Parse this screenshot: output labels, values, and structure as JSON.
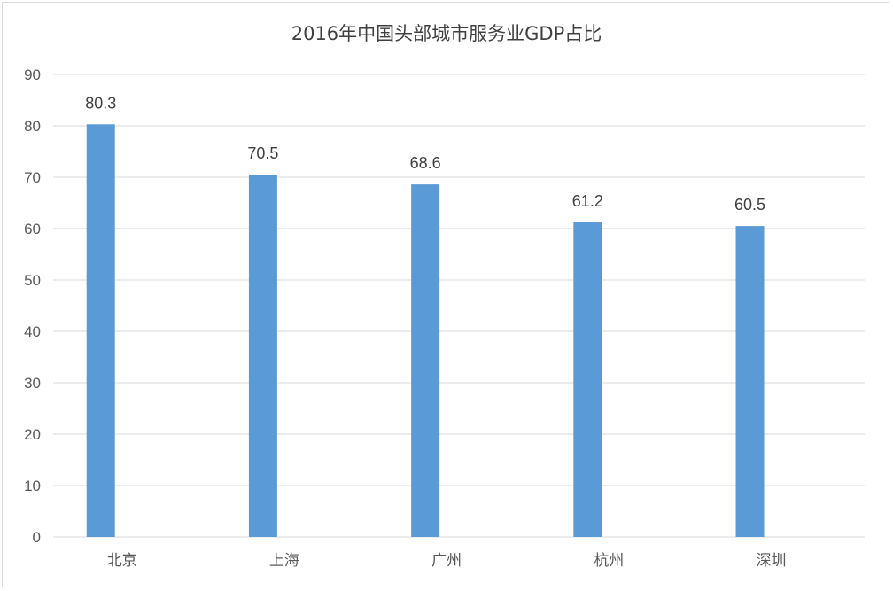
{
  "chart_data": {
    "type": "bar",
    "title": "2016年中国头部城市服务业GDP占比",
    "categories": [
      "北京",
      "上海",
      "广州",
      "杭州",
      "深圳"
    ],
    "values": [
      80.3,
      70.5,
      68.6,
      61.2,
      60.5
    ],
    "data_labels": [
      "80.3",
      "70.5",
      "68.6",
      "61.2",
      "60.5"
    ],
    "ylim": [
      0,
      90
    ],
    "y_ticks": [
      "0",
      "10",
      "20",
      "30",
      "40",
      "50",
      "60",
      "70",
      "80",
      "90"
    ],
    "xlabel": "",
    "ylabel": "",
    "grid": true,
    "legend": "none",
    "bar_color": "#5b9bd5",
    "grid_color": "#d9d9d9"
  }
}
